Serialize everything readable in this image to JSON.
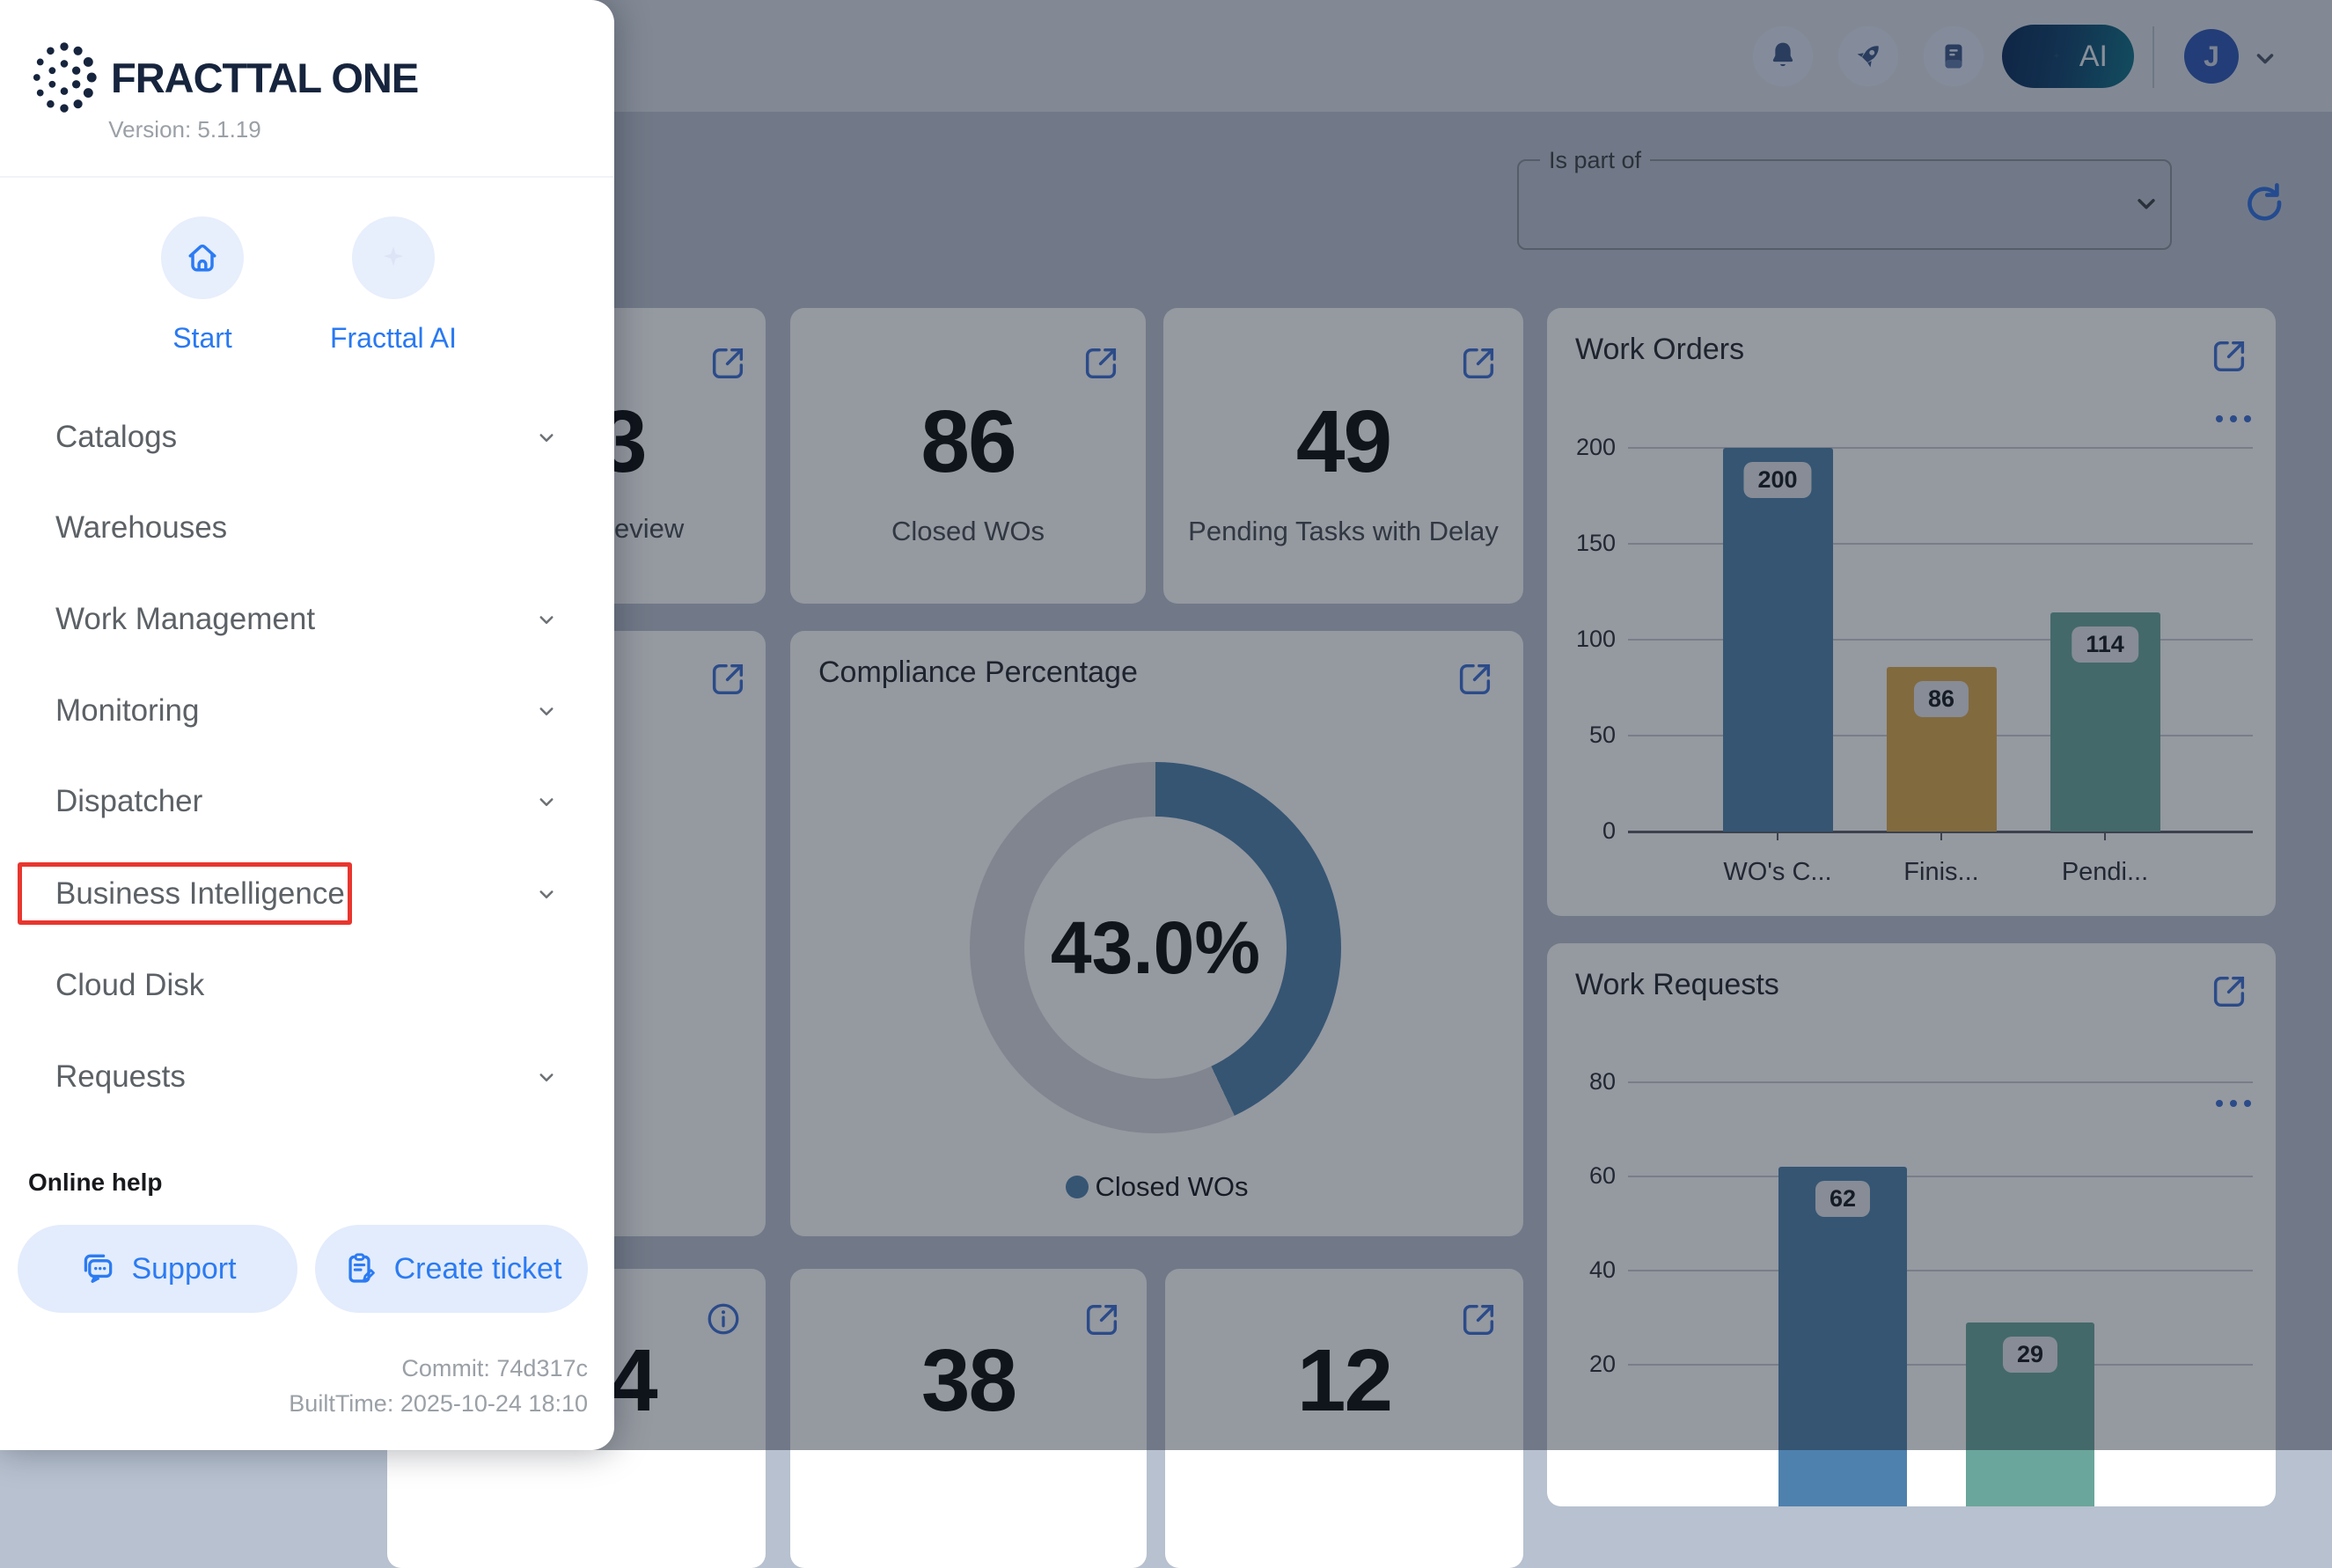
{
  "sidebar": {
    "logo_text": "FRACTTAL ONE",
    "version": "Version: 5.1.19",
    "shortcuts": [
      {
        "label": "Start",
        "icon": "home-icon"
      },
      {
        "label": "Fracttal AI",
        "icon": "sparkle-icon"
      }
    ],
    "menu": [
      {
        "label": "Catalogs",
        "expandable": true
      },
      {
        "label": "Warehouses",
        "expandable": false
      },
      {
        "label": "Work Management",
        "expandable": true
      },
      {
        "label": "Monitoring",
        "expandable": true
      },
      {
        "label": "Dispatcher",
        "expandable": true
      },
      {
        "label": "Business Intelligence",
        "expandable": true,
        "highlighted": true
      },
      {
        "label": "Cloud Disk",
        "expandable": false
      },
      {
        "label": "Requests",
        "expandable": true
      }
    ],
    "online_help": "Online help",
    "support_label": "Support",
    "create_ticket_label": "Create ticket",
    "commit": "Commit: 74d317c",
    "built_time": "BuiltTime: 2025-10-24 18:10"
  },
  "topbar": {
    "icons": [
      "bell-icon",
      "rocket-icon",
      "journal-icon"
    ],
    "ai_button_label": "AI",
    "avatar_initial": "J"
  },
  "filter": {
    "label": "Is part of",
    "value": ""
  },
  "kpi_cards": {
    "review_partial": {
      "value": "3",
      "label_fragment": "eview"
    },
    "closed": {
      "value": "86",
      "label": "Closed WOs"
    },
    "pending": {
      "value": "49",
      "label": "Pending Tasks with Delay"
    },
    "bottom_partial": {
      "value": "4"
    },
    "bottom_mid": {
      "value": "38"
    },
    "bottom_right": {
      "value": "12"
    }
  },
  "colors": {
    "bar_blue": "#4e81ad",
    "bar_gold": "#dca94d",
    "bar_teal": "#6aa69b",
    "donut_track": "#d8dbe0",
    "accent_blue": "#2b7bf3",
    "highlight_red": "#e8362e"
  },
  "chart_data": [
    {
      "type": "pie",
      "title": "Compliance Percentage",
      "center_label": "43.0%",
      "percent": 43.0,
      "slices": [
        {
          "label": "Closed WOs",
          "value": 43.0,
          "color": "#4e81ad"
        }
      ],
      "legend_position": "bottom"
    },
    {
      "type": "bar",
      "title": "Work Orders",
      "categories": [
        "WO's C...",
        "Finis...",
        "Pendi..."
      ],
      "values": [
        200,
        86,
        114
      ],
      "bar_colors": [
        "#4e81ad",
        "#dca94d",
        "#6aa69b"
      ],
      "yticks": [
        0,
        50,
        100,
        150,
        200
      ],
      "ylim": [
        0,
        200
      ],
      "grid": true
    },
    {
      "type": "bar",
      "title": "Work Requests",
      "categories": [
        "",
        ""
      ],
      "values": [
        62,
        29
      ],
      "bar_colors": [
        "#4e81ad",
        "#6aa69b"
      ],
      "yticks": [
        20,
        40,
        60,
        80
      ],
      "ylim": [
        20,
        80
      ],
      "grid": true,
      "clipped_bottom": true
    }
  ]
}
